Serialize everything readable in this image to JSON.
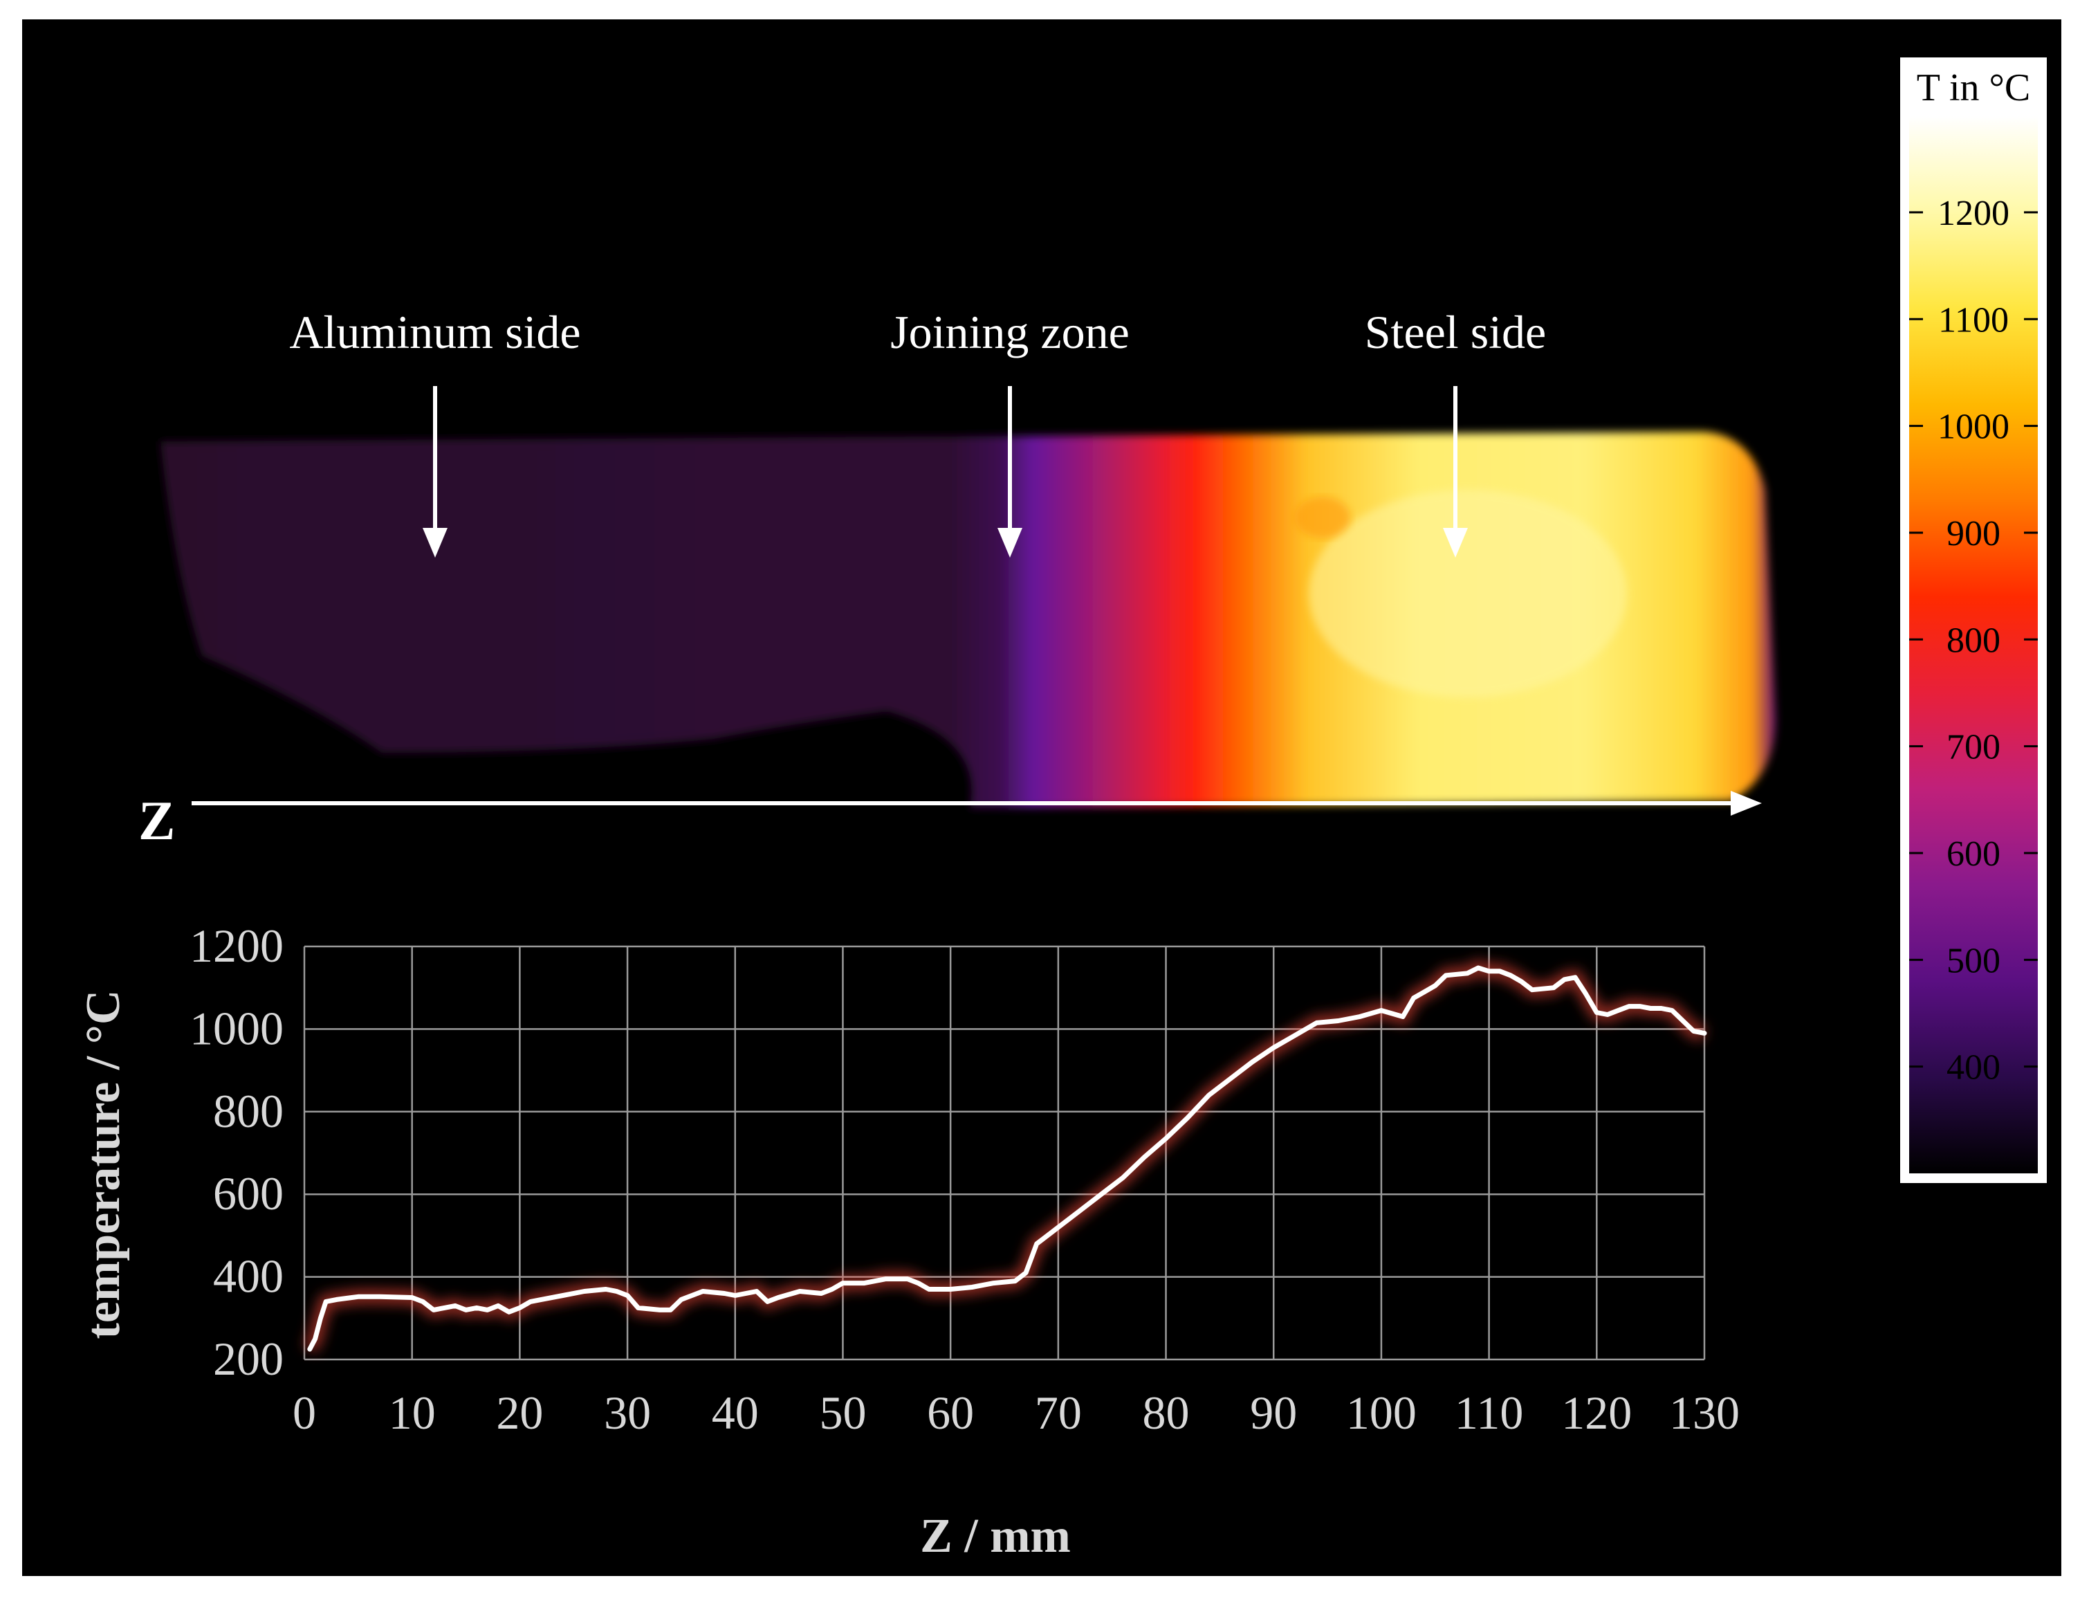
{
  "thermal_image": {
    "annotations": [
      "Aluminum side",
      "Joining zone",
      "Steel side"
    ],
    "axis_marker": "Z"
  },
  "colorbar": {
    "title": "T in °C",
    "ticks": [
      "1200",
      "1100",
      "1000",
      "900",
      "800",
      "700",
      "600",
      "500",
      "400"
    ],
    "range": [
      300,
      1290
    ],
    "colors": [
      "#000000",
      "#2a0a4a",
      "#5a0f82",
      "#8a1a8c",
      "#c0207a",
      "#e8203a",
      "#ff2a00",
      "#ff7a00",
      "#ffb800",
      "#ffe640",
      "#fff9a8",
      "#ffffff"
    ]
  },
  "chart_data": {
    "type": "line",
    "xlabel": "Z / mm",
    "ylabel": "temperature / °C",
    "xlim": [
      0,
      130
    ],
    "ylim": [
      200,
      1200
    ],
    "xticks": [
      0,
      10,
      20,
      30,
      40,
      50,
      60,
      70,
      80,
      90,
      100,
      110,
      120,
      130
    ],
    "yticks": [
      200,
      400,
      600,
      800,
      1000,
      1200
    ],
    "grid": true,
    "line_color": "#ffffff",
    "series": [
      {
        "x": [
          0.5,
          1,
          1.5,
          2,
          3,
          5,
          7,
          10,
          11,
          12,
          13,
          14,
          15,
          16,
          17,
          18,
          19,
          20,
          21,
          22,
          24,
          26,
          28,
          29,
          30,
          31,
          33,
          34,
          35,
          37,
          39,
          40,
          41,
          42,
          43,
          44,
          46,
          48,
          49,
          50,
          52,
          54,
          56,
          57,
          58,
          60,
          62,
          64,
          66,
          67,
          68,
          69,
          70,
          72,
          74,
          76,
          78,
          80,
          82,
          84,
          86,
          88,
          90,
          92,
          94,
          96,
          98,
          100,
          102,
          103,
          104,
          105,
          106,
          108,
          109,
          110,
          111,
          112,
          113,
          114,
          116,
          117,
          118,
          119,
          120,
          121,
          122,
          123,
          124,
          125,
          126,
          127,
          128,
          129,
          130
        ],
        "y": [
          225,
          250,
          300,
          340,
          345,
          352,
          352,
          350,
          340,
          320,
          325,
          330,
          320,
          325,
          320,
          330,
          315,
          325,
          340,
          345,
          355,
          365,
          370,
          365,
          355,
          325,
          320,
          320,
          345,
          365,
          360,
          355,
          360,
          365,
          340,
          350,
          365,
          360,
          370,
          385,
          385,
          395,
          395,
          385,
          370,
          370,
          375,
          385,
          390,
          410,
          480,
          500,
          520,
          560,
          600,
          640,
          690,
          735,
          785,
          840,
          880,
          920,
          955,
          985,
          1015,
          1020,
          1030,
          1045,
          1030,
          1075,
          1090,
          1105,
          1130,
          1135,
          1148,
          1140,
          1140,
          1130,
          1115,
          1095,
          1100,
          1120,
          1125,
          1085,
          1040,
          1035,
          1045,
          1055,
          1055,
          1050,
          1050,
          1045,
          1020,
          995,
          990
        ]
      }
    ]
  }
}
